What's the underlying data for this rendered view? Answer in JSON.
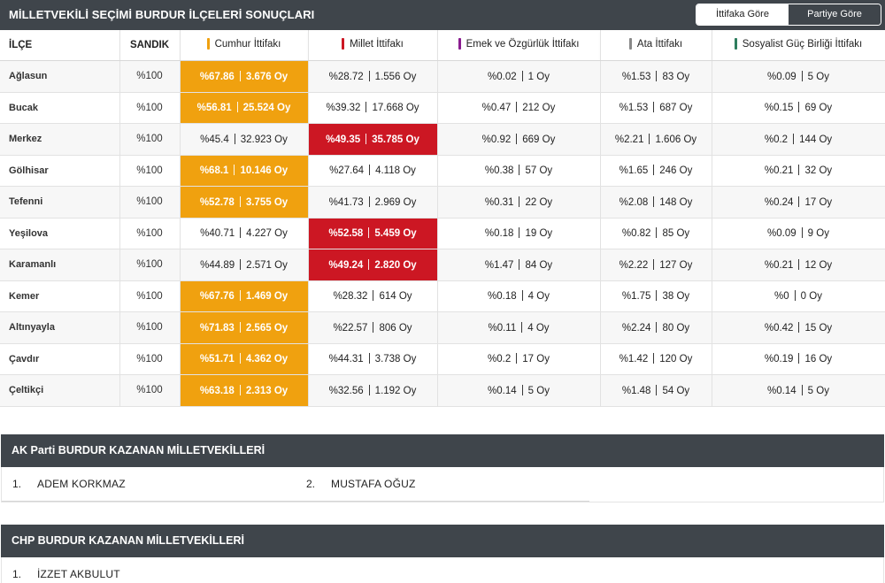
{
  "header": {
    "title": "MİLLETVEKİLİ SEÇİMİ BURDUR İLÇELERİ SONUÇLARI",
    "toggle": {
      "option1": "İttifaka Göre",
      "option2": "Partiye Göre",
      "active": "option1"
    }
  },
  "table": {
    "columns": {
      "ilce": "İLÇE",
      "sandik": "SANDIK",
      "c1": "Cumhur İttifakı",
      "c2": "Millet İttifakı",
      "c3": "Emek ve Özgürlük İttifakı",
      "c4": "Ata İttifakı",
      "c5": "Sosyalist Güç Birliği İttifakı"
    },
    "column_colors": {
      "c1": "#f0a10f",
      "c2": "#cc1723",
      "c3": "#8a1c8f",
      "c4": "#888888",
      "c5": "#2e7d5e"
    },
    "rows": [
      {
        "ilce": "Ağlasun",
        "sandik": "%100",
        "c1_pct": "%67.86",
        "c1_oy": "3.676 Oy",
        "c2_pct": "%28.72",
        "c2_oy": "1.556 Oy",
        "c3_pct": "%0.02",
        "c3_oy": "1 Oy",
        "c4_pct": "%1.53",
        "c4_oy": "83 Oy",
        "c5_pct": "%0.09",
        "c5_oy": "5 Oy",
        "winner": "c1"
      },
      {
        "ilce": "Bucak",
        "sandik": "%100",
        "c1_pct": "%56.81",
        "c1_oy": "25.524 Oy",
        "c2_pct": "%39.32",
        "c2_oy": "17.668 Oy",
        "c3_pct": "%0.47",
        "c3_oy": "212 Oy",
        "c4_pct": "%1.53",
        "c4_oy": "687 Oy",
        "c5_pct": "%0.15",
        "c5_oy": "69 Oy",
        "winner": "c1"
      },
      {
        "ilce": "Merkez",
        "sandik": "%100",
        "c1_pct": "%45.4",
        "c1_oy": "32.923 Oy",
        "c2_pct": "%49.35",
        "c2_oy": "35.785 Oy",
        "c3_pct": "%0.92",
        "c3_oy": "669 Oy",
        "c4_pct": "%2.21",
        "c4_oy": "1.606 Oy",
        "c5_pct": "%0.2",
        "c5_oy": "144 Oy",
        "winner": "c2"
      },
      {
        "ilce": "Gölhisar",
        "sandik": "%100",
        "c1_pct": "%68.1",
        "c1_oy": "10.146 Oy",
        "c2_pct": "%27.64",
        "c2_oy": "4.118 Oy",
        "c3_pct": "%0.38",
        "c3_oy": "57 Oy",
        "c4_pct": "%1.65",
        "c4_oy": "246 Oy",
        "c5_pct": "%0.21",
        "c5_oy": "32 Oy",
        "winner": "c1"
      },
      {
        "ilce": "Tefenni",
        "sandik": "%100",
        "c1_pct": "%52.78",
        "c1_oy": "3.755 Oy",
        "c2_pct": "%41.73",
        "c2_oy": "2.969 Oy",
        "c3_pct": "%0.31",
        "c3_oy": "22 Oy",
        "c4_pct": "%2.08",
        "c4_oy": "148 Oy",
        "c5_pct": "%0.24",
        "c5_oy": "17 Oy",
        "winner": "c1"
      },
      {
        "ilce": "Yeşilova",
        "sandik": "%100",
        "c1_pct": "%40.71",
        "c1_oy": "4.227 Oy",
        "c2_pct": "%52.58",
        "c2_oy": "5.459 Oy",
        "c3_pct": "%0.18",
        "c3_oy": "19 Oy",
        "c4_pct": "%0.82",
        "c4_oy": "85 Oy",
        "c5_pct": "%0.09",
        "c5_oy": "9 Oy",
        "winner": "c2"
      },
      {
        "ilce": "Karamanlı",
        "sandik": "%100",
        "c1_pct": "%44.89",
        "c1_oy": "2.571 Oy",
        "c2_pct": "%49.24",
        "c2_oy": "2.820 Oy",
        "c3_pct": "%1.47",
        "c3_oy": "84 Oy",
        "c4_pct": "%2.22",
        "c4_oy": "127 Oy",
        "c5_pct": "%0.21",
        "c5_oy": "12 Oy",
        "winner": "c2"
      },
      {
        "ilce": "Kemer",
        "sandik": "%100",
        "c1_pct": "%67.76",
        "c1_oy": "1.469 Oy",
        "c2_pct": "%28.32",
        "c2_oy": "614 Oy",
        "c3_pct": "%0.18",
        "c3_oy": "4 Oy",
        "c4_pct": "%1.75",
        "c4_oy": "38 Oy",
        "c5_pct": "%0",
        "c5_oy": "0 Oy",
        "winner": "c1"
      },
      {
        "ilce": "Altınyayla",
        "sandik": "%100",
        "c1_pct": "%71.83",
        "c1_oy": "2.565 Oy",
        "c2_pct": "%22.57",
        "c2_oy": "806 Oy",
        "c3_pct": "%0.11",
        "c3_oy": "4 Oy",
        "c4_pct": "%2.24",
        "c4_oy": "80 Oy",
        "c5_pct": "%0.42",
        "c5_oy": "15 Oy",
        "winner": "c1"
      },
      {
        "ilce": "Çavdır",
        "sandik": "%100",
        "c1_pct": "%51.71",
        "c1_oy": "4.362 Oy",
        "c2_pct": "%44.31",
        "c2_oy": "3.738 Oy",
        "c3_pct": "%0.2",
        "c3_oy": "17 Oy",
        "c4_pct": "%1.42",
        "c4_oy": "120 Oy",
        "c5_pct": "%0.19",
        "c5_oy": "16 Oy",
        "winner": "c1"
      },
      {
        "ilce": "Çeltikçi",
        "sandik": "%100",
        "c1_pct": "%63.18",
        "c1_oy": "2.313 Oy",
        "c2_pct": "%32.56",
        "c2_oy": "1.192 Oy",
        "c3_pct": "%0.14",
        "c3_oy": "5 Oy",
        "c4_pct": "%1.48",
        "c4_oy": "54 Oy",
        "c5_pct": "%0.14",
        "c5_oy": "5 Oy",
        "winner": "c1"
      }
    ]
  },
  "akparti": {
    "title": "AK Parti BURDUR KAZANAN MİLLETVEKİLLERİ",
    "members": [
      {
        "num": "1.",
        "name": "ADEM KORKMAZ"
      },
      {
        "num": "2.",
        "name": "MUSTAFA OĞUZ"
      }
    ]
  },
  "chp": {
    "title": "CHP BURDUR KAZANAN MİLLETVEKİLLERİ",
    "members": [
      {
        "num": "1.",
        "name": "İZZET AKBULUT"
      }
    ]
  }
}
